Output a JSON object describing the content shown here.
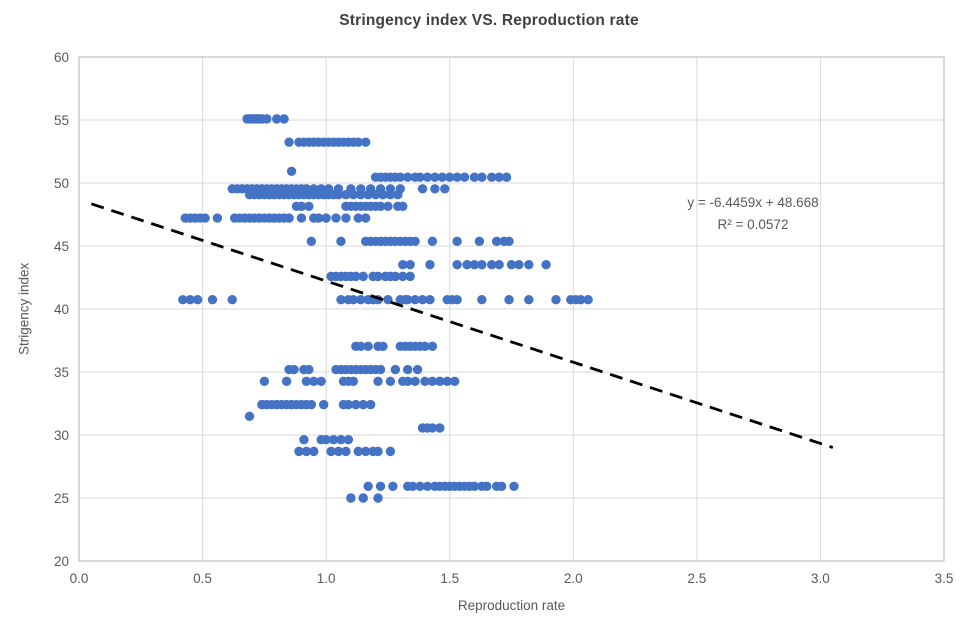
{
  "chart": {
    "title": "Stringency index VS. Reproduction rate",
    "x_axis_title": "Reproduction rate",
    "y_axis_title": "Strigency index",
    "equation_line1": "y = -6.4459x + 48.668",
    "equation_line2": "R² = 0.0572"
  },
  "colors": {
    "point": "#4472C4",
    "trendline": "#000000",
    "gridline": "#D9D9D9",
    "plot_border": "#BFBFBF",
    "axis_text": "#595959",
    "title_text": "#404040"
  },
  "chart_data": {
    "type": "scatter",
    "title": "Stringency index VS. Reproduction rate",
    "xlabel": "Reproduction rate",
    "ylabel": "Strigency index",
    "xlim": [
      0,
      3.5
    ],
    "ylim": [
      20,
      60
    ],
    "x_ticks": [
      0.0,
      0.5,
      1.0,
      1.5,
      2.0,
      2.5,
      3.0,
      3.5
    ],
    "y_ticks": [
      20,
      25,
      30,
      35,
      40,
      45,
      50,
      55,
      60
    ],
    "grid": true,
    "legend": "none",
    "annotation": {
      "line1": "y = -6.4459x + 48.668",
      "line2": "R² = 0.0572"
    },
    "trendline": {
      "slope": -6.4459,
      "intercept": 48.668,
      "x_start": 0.05,
      "x_end": 3.05,
      "style": "dashed"
    },
    "bands": [
      {
        "y": 55.09,
        "x": [
          0.68,
          0.69,
          0.7,
          0.71,
          0.72,
          0.73,
          0.74,
          0.76,
          0.8,
          0.83
        ]
      },
      {
        "y": 53.24,
        "x": [
          0.85,
          0.89,
          0.91,
          0.93,
          0.95,
          0.97,
          0.99,
          1.01,
          1.03,
          1.05,
          1.07,
          1.09,
          1.11,
          1.13,
          1.16
        ]
      },
      {
        "y": 50.93,
        "x": [
          0.86
        ]
      },
      {
        "y": 50.46,
        "x": [
          1.2,
          1.22,
          1.24,
          1.26,
          1.28,
          1.3,
          1.33,
          1.36,
          1.38,
          1.41,
          1.44,
          1.47,
          1.5,
          1.53,
          1.56,
          1.6,
          1.63,
          1.67,
          1.7,
          1.73
        ]
      },
      {
        "y": 49.54,
        "x": [
          0.62,
          0.64,
          0.66,
          0.68,
          0.7,
          0.72,
          0.74,
          0.76,
          0.78,
          0.8,
          0.82,
          0.84,
          0.86,
          0.88,
          0.9,
          0.92,
          0.95,
          0.98,
          1.01,
          1.05,
          1.1,
          1.14,
          1.18,
          1.22,
          1.26,
          1.3,
          1.39,
          1.44,
          1.48
        ]
      },
      {
        "y": 49.07,
        "x": [
          0.69,
          0.71,
          0.73,
          0.75,
          0.77,
          0.79,
          0.81,
          0.83,
          0.85,
          0.87,
          0.89,
          0.91,
          0.93,
          0.95,
          0.97,
          0.99,
          1.01,
          1.03,
          1.05,
          1.08,
          1.11,
          1.14,
          1.17,
          1.2,
          1.23,
          1.26,
          1.29
        ]
      },
      {
        "y": 48.15,
        "x": [
          0.88,
          0.9,
          0.93,
          1.08,
          1.1,
          1.12,
          1.14,
          1.16,
          1.18,
          1.2,
          1.22,
          1.25,
          1.29,
          1.31
        ]
      },
      {
        "y": 47.22,
        "x": [
          0.43,
          0.45,
          0.47,
          0.49,
          0.51,
          0.56,
          0.63,
          0.65,
          0.67,
          0.69,
          0.71,
          0.73,
          0.75,
          0.77,
          0.79,
          0.81,
          0.83,
          0.85,
          0.9,
          0.95,
          0.97,
          1.0,
          1.04,
          1.08,
          1.13,
          1.16
        ]
      },
      {
        "y": 45.37,
        "x": [
          0.94,
          1.06,
          1.16,
          1.18,
          1.2,
          1.22,
          1.24,
          1.26,
          1.28,
          1.3,
          1.32,
          1.34,
          1.36,
          1.43,
          1.53,
          1.62,
          1.69,
          1.72,
          1.74
        ]
      },
      {
        "y": 43.52,
        "x": [
          1.31,
          1.34,
          1.42,
          1.53,
          1.57,
          1.6,
          1.63,
          1.67,
          1.7,
          1.75,
          1.78,
          1.82,
          1.89
        ]
      },
      {
        "y": 42.59,
        "x": [
          1.02,
          1.04,
          1.06,
          1.08,
          1.1,
          1.12,
          1.15,
          1.19,
          1.21,
          1.24,
          1.26,
          1.28,
          1.31,
          1.34
        ]
      },
      {
        "y": 40.74,
        "x": [
          0.42,
          0.45,
          0.48,
          0.54,
          0.62,
          1.06,
          1.09,
          1.11,
          1.14,
          1.17,
          1.19,
          1.21,
          1.25,
          1.3,
          1.32,
          1.33,
          1.36,
          1.39,
          1.42,
          1.49,
          1.51,
          1.53,
          1.63,
          1.74,
          1.82,
          1.93,
          1.99,
          2.01,
          2.03,
          2.06
        ]
      },
      {
        "y": 37.04,
        "x": [
          1.12,
          1.14,
          1.17,
          1.21,
          1.23,
          1.3,
          1.32,
          1.34,
          1.36,
          1.38,
          1.4,
          1.43
        ]
      },
      {
        "y": 35.19,
        "x": [
          0.85,
          0.87,
          0.91,
          0.93,
          1.04,
          1.06,
          1.08,
          1.1,
          1.12,
          1.14,
          1.16,
          1.18,
          1.2,
          1.22,
          1.28,
          1.33,
          1.37
        ]
      },
      {
        "y": 34.26,
        "x": [
          0.75,
          0.84,
          0.92,
          0.95,
          0.98,
          1.07,
          1.09,
          1.11,
          1.21,
          1.26,
          1.31,
          1.33,
          1.36,
          1.4,
          1.43,
          1.46,
          1.49,
          1.52
        ]
      },
      {
        "y": 32.41,
        "x": [
          0.74,
          0.76,
          0.78,
          0.8,
          0.82,
          0.84,
          0.86,
          0.88,
          0.9,
          0.92,
          0.94,
          0.99,
          1.07,
          1.09,
          1.12,
          1.15,
          1.18
        ]
      },
      {
        "y": 31.48,
        "x": [
          0.69
        ]
      },
      {
        "y": 30.56,
        "x": [
          1.39,
          1.41,
          1.43,
          1.46
        ]
      },
      {
        "y": 29.63,
        "x": [
          0.91,
          0.98,
          1.0,
          1.03,
          1.06,
          1.09
        ]
      },
      {
        "y": 28.7,
        "x": [
          0.89,
          0.92,
          0.95,
          1.02,
          1.05,
          1.08,
          1.13,
          1.16,
          1.19,
          1.21,
          1.26
        ]
      },
      {
        "y": 25.93,
        "x": [
          1.17,
          1.22,
          1.27,
          1.33,
          1.35,
          1.38,
          1.41,
          1.44,
          1.46,
          1.48,
          1.5,
          1.52,
          1.54,
          1.56,
          1.58,
          1.6,
          1.63,
          1.65,
          1.69,
          1.71,
          1.76
        ]
      },
      {
        "y": 25.0,
        "x": [
          1.1,
          1.15,
          1.21
        ]
      }
    ]
  }
}
